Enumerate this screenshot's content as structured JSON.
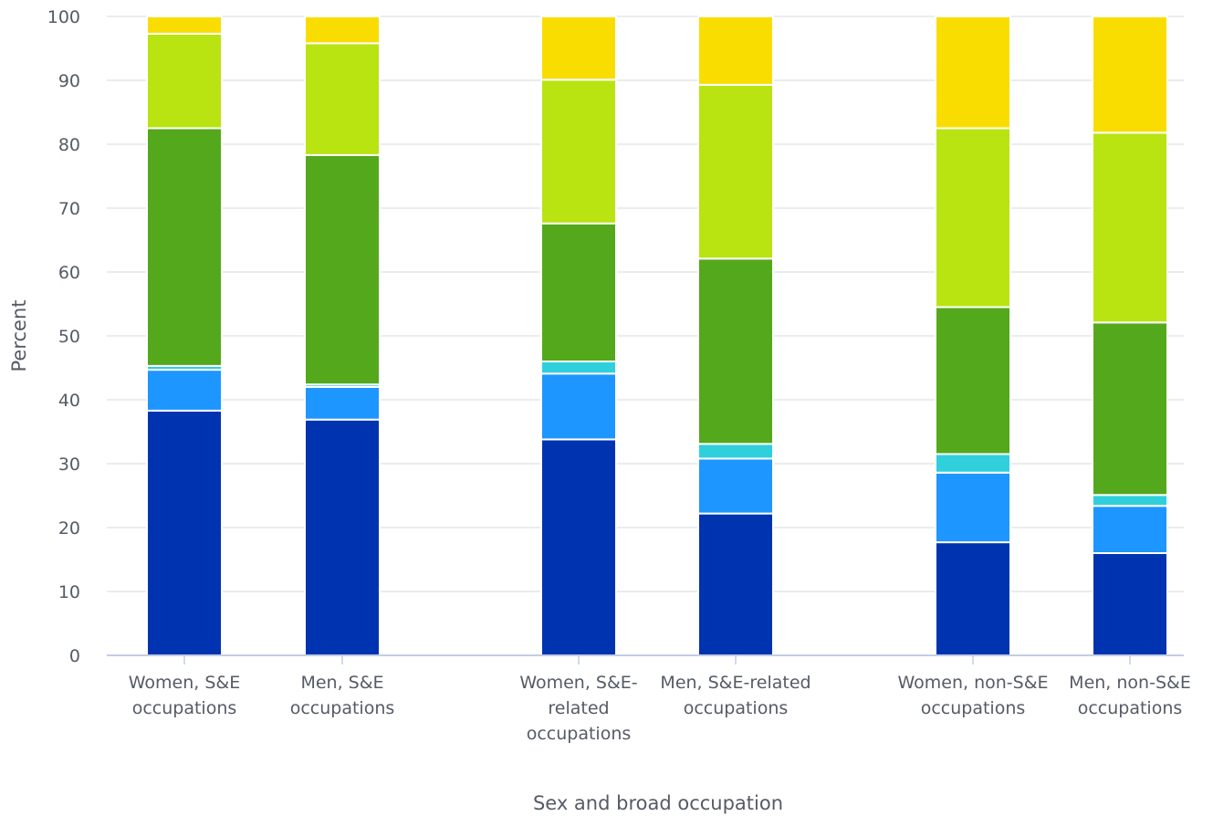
{
  "chart_data": {
    "type": "bar",
    "stacked": true,
    "title": "",
    "xlabel": "Sex and broad occupation",
    "ylabel": "Percent",
    "ylim": [
      0,
      100
    ],
    "yticks": [
      "0",
      "10",
      "20",
      "30",
      "40",
      "50",
      "60",
      "70",
      "80",
      "90",
      "100"
    ],
    "grid": true,
    "legend": "none",
    "categories": [
      [
        "Women, S&E",
        "occupations"
      ],
      [
        "Men, S&E",
        "occupations"
      ],
      [
        "Women, S&E-",
        "related",
        "occupations"
      ],
      [
        "Men, S&E-related",
        "occupations"
      ],
      [
        "Women, non-S&E",
        "occupations"
      ],
      [
        "Men, non-S&E",
        "occupations"
      ]
    ],
    "series": [
      {
        "color": "#0033b0",
        "values": [
          38.3,
          36.9,
          33.8,
          22.2,
          17.7,
          16.0
        ]
      },
      {
        "color": "#1e96ff",
        "values": [
          6.4,
          5.1,
          10.3,
          8.6,
          10.9,
          7.4
        ]
      },
      {
        "color": "#2fd0dc",
        "values": [
          0.6,
          0.4,
          1.9,
          2.3,
          2.9,
          1.7
        ]
      },
      {
        "color": "#54a81c",
        "values": [
          37.2,
          35.9,
          21.6,
          29.0,
          23.0,
          27.0
        ]
      },
      {
        "color": "#bae312",
        "values": [
          14.8,
          17.5,
          22.5,
          27.2,
          28.0,
          29.7
        ]
      },
      {
        "color": "#fadd00",
        "values": [
          2.7,
          4.2,
          9.9,
          10.7,
          17.5,
          18.2
        ]
      }
    ]
  }
}
